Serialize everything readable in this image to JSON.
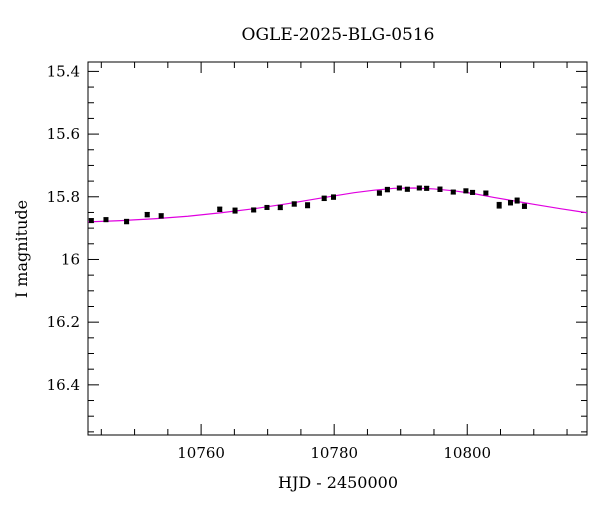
{
  "chart_data": {
    "type": "scatter",
    "title": "OGLE-2025-BLG-0516",
    "xlabel": "HJD - 2450000",
    "ylabel": "I magnitude",
    "xlim": [
      10743,
      10818
    ],
    "ylim": [
      16.56,
      15.37
    ],
    "y_inverted": true,
    "xticks_major": [
      10760,
      10780,
      10800
    ],
    "xtick_labels": [
      "10760",
      "10780",
      "10800"
    ],
    "yticks_major": [
      15.4,
      15.6,
      15.8,
      16.0,
      16.2,
      16.4
    ],
    "ytick_labels": [
      "15.4",
      "15.6",
      "15.8",
      "16",
      "16.2",
      "16.4"
    ],
    "grid": false,
    "colors": {
      "points": "#000000",
      "model": "#e000e0"
    },
    "series": [
      {
        "type": "scatter-errorbar",
        "x": [
          10743.5,
          10745.7,
          10748.8,
          10751.9,
          10754.0,
          10762.8,
          10765.1,
          10767.9,
          10769.9,
          10771.9,
          10774.0,
          10776.0,
          10778.5,
          10779.9,
          10786.8,
          10788.0,
          10789.8,
          10791.0,
          10792.8,
          10793.9,
          10795.9,
          10797.9,
          10799.8,
          10800.8,
          10802.8,
          10804.8,
          10806.5,
          10807.5,
          10808.6
        ],
        "y": [
          15.876,
          15.873,
          15.879,
          15.857,
          15.861,
          15.84,
          15.844,
          15.842,
          15.834,
          15.834,
          15.823,
          15.827,
          15.805,
          15.801,
          15.788,
          15.777,
          15.772,
          15.776,
          15.772,
          15.773,
          15.776,
          15.785,
          15.781,
          15.786,
          15.788,
          15.827,
          15.819,
          15.812,
          15.83
        ],
        "err": [
          0.006,
          0.006,
          0.007,
          0.007,
          0.007,
          0.007,
          0.008,
          0.006,
          0.006,
          0.007,
          0.007,
          0.008,
          0.007,
          0.007,
          0.007,
          0.007,
          0.006,
          0.006,
          0.006,
          0.006,
          0.007,
          0.006,
          0.006,
          0.006,
          0.006,
          0.009,
          0.007,
          0.008,
          0.007
        ]
      },
      {
        "type": "line",
        "x": [
          10743,
          10748,
          10753,
          10758,
          10763,
          10768,
          10773,
          10778,
          10783,
          10786,
          10789,
          10792,
          10795,
          10798,
          10801,
          10804,
          10807,
          10810,
          10814,
          10818
        ],
        "y": [
          15.88,
          15.876,
          15.87,
          15.862,
          15.851,
          15.838,
          15.822,
          15.804,
          15.787,
          15.779,
          15.773,
          15.772,
          15.775,
          15.781,
          15.79,
          15.802,
          15.813,
          15.824,
          15.838,
          15.851
        ]
      }
    ]
  }
}
